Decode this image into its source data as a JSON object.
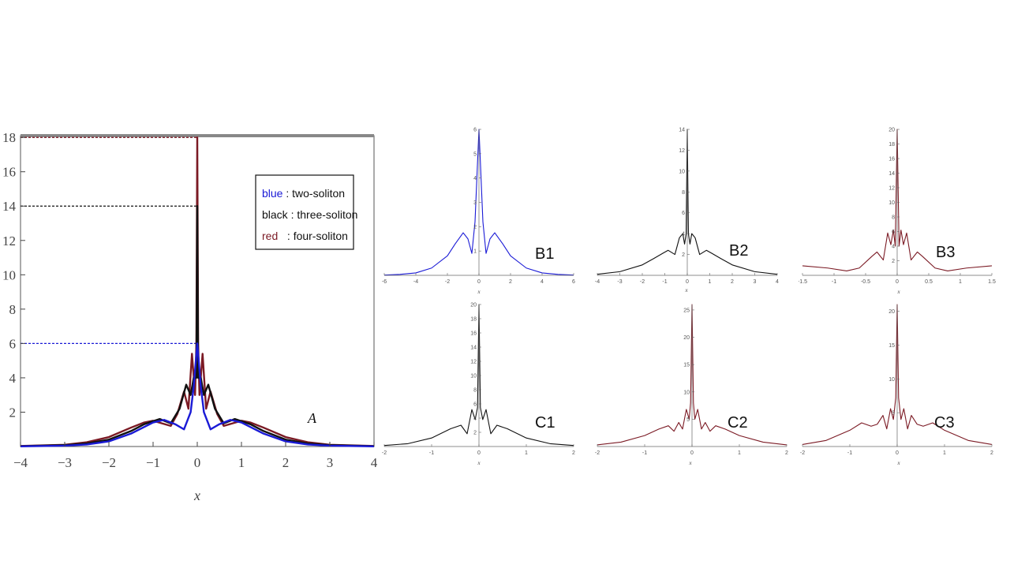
{
  "chart_data": [
    {
      "id": "A",
      "type": "line",
      "panel_label": "A",
      "xlabel": "x",
      "xlim": [
        -4,
        4
      ],
      "ylim": [
        0,
        18.1
      ],
      "x_ticks": [
        -4,
        -3,
        -2,
        -1,
        0,
        1,
        2,
        3,
        4
      ],
      "y_ticks": [
        2,
        4,
        6,
        8,
        10,
        12,
        14,
        16,
        18
      ],
      "legend": {
        "placement": "top-right",
        "entries": [
          {
            "key": "blue",
            "sep": " : ",
            "text": "two-soliton",
            "color": "#1a1ad6"
          },
          {
            "key": "black",
            "sep": " : ",
            "text": "three-soliton",
            "color": "#111111"
          },
          {
            "key": "red",
            "sep": "   : ",
            "text": "four-soliton",
            "color": "#7b1a24"
          }
        ]
      },
      "reference_lines": [
        {
          "y": 18,
          "color": "#7b1a24"
        },
        {
          "y": 14,
          "color": "#111111"
        },
        {
          "y": 6,
          "color": "#1a1ad6"
        }
      ],
      "series": [
        {
          "color": "#7b1a24",
          "x": [
            -4,
            -3,
            -2.5,
            -2,
            -1.5,
            -1.2,
            -1.0,
            -0.8,
            -0.6,
            -0.45,
            -0.3,
            -0.2,
            -0.12,
            -0.05,
            -0.02,
            0,
            0.02,
            0.05,
            0.12,
            0.2,
            0.3,
            0.45,
            0.6,
            0.8,
            1.0,
            1.2,
            1.5,
            2,
            2.5,
            3,
            4
          ],
          "y": [
            0.03,
            0.1,
            0.25,
            0.55,
            1.1,
            1.4,
            1.5,
            1.35,
            1.2,
            1.9,
            3.2,
            2.2,
            5.4,
            3.0,
            6.0,
            18.0,
            6.0,
            3.0,
            5.4,
            2.2,
            3.2,
            1.9,
            1.2,
            1.35,
            1.5,
            1.4,
            1.1,
            0.55,
            0.25,
            0.1,
            0.03
          ]
        },
        {
          "color": "#111111",
          "x": [
            -4,
            -3,
            -2.5,
            -2,
            -1.5,
            -1.2,
            -0.85,
            -0.6,
            -0.4,
            -0.25,
            -0.15,
            -0.08,
            -0.02,
            0,
            0.02,
            0.08,
            0.15,
            0.25,
            0.4,
            0.6,
            0.85,
            1.2,
            1.5,
            2,
            2.5,
            3,
            4
          ],
          "y": [
            0.02,
            0.08,
            0.18,
            0.4,
            0.9,
            1.3,
            1.6,
            1.35,
            2.2,
            3.6,
            3.0,
            4.0,
            4.0,
            14.0,
            4.0,
            4.0,
            3.0,
            3.6,
            2.2,
            1.35,
            1.6,
            1.3,
            0.9,
            0.4,
            0.18,
            0.08,
            0.02
          ]
        },
        {
          "color": "#1a1ad6",
          "x": [
            -4,
            -3,
            -2.5,
            -2,
            -1.5,
            -1.0,
            -0.75,
            -0.5,
            -0.3,
            -0.15,
            -0.08,
            0,
            0.08,
            0.15,
            0.3,
            0.5,
            0.75,
            1.0,
            1.5,
            2,
            2.5,
            3,
            4
          ],
          "y": [
            0.01,
            0.05,
            0.12,
            0.3,
            0.75,
            1.4,
            1.55,
            1.3,
            1.0,
            2.0,
            3.5,
            6.0,
            3.5,
            2.0,
            1.0,
            1.3,
            1.55,
            1.4,
            0.75,
            0.3,
            0.12,
            0.05,
            0.01
          ]
        }
      ]
    },
    {
      "id": "B1",
      "type": "line",
      "panel_label": "B1",
      "xlabel": "x",
      "xlim": [
        -6,
        6
      ],
      "ylim": [
        0,
        6
      ],
      "x_ticks": [
        -6,
        -4,
        -2,
        0,
        2,
        4,
        6
      ],
      "y_ticks": [
        1,
        2,
        3,
        4,
        5,
        6
      ],
      "series": [
        {
          "color": "#1a1ad6",
          "x": [
            -6,
            -5,
            -4,
            -3,
            -2,
            -1.5,
            -1.0,
            -0.7,
            -0.45,
            -0.25,
            -0.1,
            0,
            0.1,
            0.25,
            0.45,
            0.7,
            1.0,
            1.5,
            2,
            3,
            4,
            5,
            6
          ],
          "y": [
            0.01,
            0.04,
            0.1,
            0.3,
            0.8,
            1.3,
            1.75,
            1.5,
            0.9,
            2.2,
            4.5,
            6.0,
            4.5,
            2.2,
            0.9,
            1.5,
            1.75,
            1.3,
            0.8,
            0.3,
            0.1,
            0.04,
            0.01
          ]
        }
      ]
    },
    {
      "id": "B2",
      "type": "line",
      "panel_label": "B2",
      "xlabel": "x",
      "xlim": [
        -4,
        4
      ],
      "ylim": [
        0,
        14
      ],
      "x_ticks": [
        -4,
        -3,
        -2,
        -1,
        0,
        1,
        2,
        3,
        4
      ],
      "y_ticks": [
        2,
        4,
        6,
        8,
        10,
        12,
        14
      ],
      "series": [
        {
          "color": "#111111",
          "x": [
            -4,
            -3,
            -2,
            -1.5,
            -1.1,
            -0.85,
            -0.55,
            -0.35,
            -0.2,
            -0.12,
            -0.05,
            0,
            0.05,
            0.12,
            0.2,
            0.35,
            0.55,
            0.85,
            1.1,
            1.5,
            2,
            3,
            4
          ],
          "y": [
            0.1,
            0.35,
            1.0,
            1.6,
            2.1,
            2.4,
            2.0,
            3.6,
            4.0,
            3.0,
            4.0,
            14.0,
            4.0,
            3.0,
            4.0,
            3.6,
            2.0,
            2.4,
            2.1,
            1.6,
            1.0,
            0.35,
            0.1
          ]
        }
      ]
    },
    {
      "id": "B3",
      "type": "line",
      "panel_label": "B3",
      "xlabel": "x",
      "xlim": [
        -1.5,
        1.5
      ],
      "ylim": [
        0,
        20
      ],
      "x_ticks": [
        -1.5,
        -1,
        -0.5,
        0,
        0.5,
        1,
        1.5
      ],
      "y_ticks": [
        2,
        4,
        6,
        8,
        10,
        12,
        14,
        16,
        18,
        20
      ],
      "series": [
        {
          "color": "#7b1a24",
          "x": [
            -1.5,
            -1.1,
            -0.8,
            -0.6,
            -0.4,
            -0.32,
            -0.22,
            -0.15,
            -0.1,
            -0.06,
            -0.03,
            0,
            0.03,
            0.06,
            0.1,
            0.15,
            0.22,
            0.32,
            0.4,
            0.6,
            0.8,
            1.1,
            1.5
          ],
          "y": [
            1.3,
            1.0,
            0.6,
            1.0,
            2.6,
            3.2,
            2.1,
            5.8,
            4.2,
            6.2,
            4.0,
            20.0,
            4.0,
            6.2,
            4.2,
            5.8,
            2.1,
            3.2,
            2.6,
            1.0,
            0.6,
            1.0,
            1.3
          ]
        }
      ]
    },
    {
      "id": "C1",
      "type": "line",
      "panel_label": "C1",
      "xlabel": "x",
      "xlim": [
        -2,
        2
      ],
      "ylim": [
        0,
        20
      ],
      "x_ticks": [
        -2,
        -1,
        0,
        1,
        2
      ],
      "y_ticks": [
        2,
        4,
        6,
        8,
        10,
        12,
        14,
        16,
        18,
        20
      ],
      "series": [
        {
          "color": "#111111",
          "x": [
            -2,
            -1.5,
            -1,
            -0.6,
            -0.38,
            -0.25,
            -0.15,
            -0.08,
            -0.03,
            0,
            0.03,
            0.08,
            0.15,
            0.25,
            0.38,
            0.6,
            1,
            1.5,
            2
          ],
          "y": [
            0.15,
            0.4,
            1.2,
            2.5,
            3.0,
            1.8,
            5.2,
            3.8,
            5.5,
            20.0,
            5.5,
            3.8,
            5.2,
            1.8,
            3.0,
            2.5,
            1.2,
            0.4,
            0.15
          ]
        }
      ]
    },
    {
      "id": "C2",
      "type": "line",
      "panel_label": "C2",
      "xlabel": "x",
      "xlim": [
        -2,
        2
      ],
      "ylim": [
        0,
        26
      ],
      "x_ticks": [
        -2,
        -1,
        0,
        1,
        2
      ],
      "y_ticks": [
        5,
        10,
        15,
        20,
        25
      ],
      "series": [
        {
          "color": "#7b1a24",
          "x": [
            -2,
            -1.5,
            -1,
            -0.7,
            -0.5,
            -0.38,
            -0.28,
            -0.2,
            -0.12,
            -0.06,
            -0.03,
            0,
            0.03,
            0.06,
            0.12,
            0.2,
            0.28,
            0.38,
            0.5,
            0.7,
            1,
            1.5,
            2
          ],
          "y": [
            0.3,
            0.8,
            2.0,
            3.2,
            3.8,
            2.8,
            4.4,
            3.2,
            6.8,
            5.0,
            8.0,
            26.0,
            8.0,
            5.0,
            6.8,
            3.2,
            4.4,
            2.8,
            3.8,
            3.2,
            2.0,
            0.8,
            0.3
          ]
        }
      ]
    },
    {
      "id": "C3",
      "type": "line",
      "panel_label": "C3",
      "xlabel": "x",
      "xlim": [
        -2,
        2
      ],
      "ylim": [
        0,
        21
      ],
      "x_ticks": [
        -2,
        -1,
        0,
        1,
        2
      ],
      "y_ticks": [
        5,
        10,
        15,
        20
      ],
      "series": [
        {
          "color": "#7b1a24",
          "x": [
            -2,
            -1.5,
            -1,
            -0.75,
            -0.55,
            -0.42,
            -0.3,
            -0.22,
            -0.14,
            -0.08,
            -0.03,
            0,
            0.03,
            0.08,
            0.14,
            0.22,
            0.3,
            0.42,
            0.55,
            0.75,
            1,
            1.5,
            2
          ],
          "y": [
            0.3,
            0.9,
            2.4,
            3.5,
            3.0,
            3.3,
            4.6,
            2.6,
            5.6,
            4.0,
            7.2,
            21.0,
            7.2,
            4.0,
            5.6,
            2.6,
            4.6,
            3.3,
            3.0,
            3.5,
            2.4,
            0.9,
            0.3
          ]
        }
      ]
    }
  ]
}
